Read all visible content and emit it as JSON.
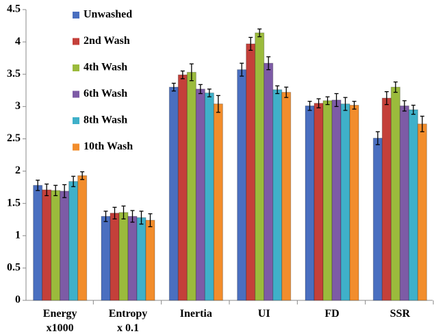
{
  "chart_data": {
    "type": "bar",
    "categories": [
      "Energy\nx1000",
      "Entropy\nx 0.1",
      "Inertia",
      "UI",
      "FD",
      "SSR"
    ],
    "series": [
      {
        "name": "Unwashed",
        "color": "#4a6fc0",
        "values": [
          1.78,
          1.3,
          3.3,
          3.57,
          3.01,
          2.51
        ],
        "errors": [
          0.08,
          0.08,
          0.06,
          0.1,
          0.07,
          0.1
        ]
      },
      {
        "name": "2nd Wash",
        "color": "#c4403a",
        "values": [
          1.71,
          1.35,
          3.49,
          3.97,
          3.05,
          3.13
        ],
        "errors": [
          0.09,
          0.09,
          0.06,
          0.1,
          0.07,
          0.1
        ]
      },
      {
        "name": "4th Wash",
        "color": "#9bbb3c",
        "values": [
          1.7,
          1.36,
          3.53,
          4.14,
          3.09,
          3.3
        ],
        "errors": [
          0.08,
          0.1,
          0.13,
          0.06,
          0.06,
          0.08
        ]
      },
      {
        "name": "6th Wash",
        "color": "#7d5ba6",
        "values": [
          1.69,
          1.3,
          3.27,
          3.67,
          3.1,
          3.01
        ],
        "errors": [
          0.1,
          0.09,
          0.07,
          0.1,
          0.1,
          0.08
        ]
      },
      {
        "name": "8th Wash",
        "color": "#3fb0c9",
        "values": [
          1.84,
          1.28,
          3.21,
          3.26,
          3.04,
          2.95
        ],
        "errors": [
          0.08,
          0.1,
          0.06,
          0.06,
          0.1,
          0.07
        ]
      },
      {
        "name": "10th Wash",
        "color": "#f28d2c",
        "values": [
          1.93,
          1.24,
          3.04,
          3.22,
          3.02,
          2.73
        ],
        "errors": [
          0.06,
          0.1,
          0.13,
          0.08,
          0.06,
          0.12
        ]
      }
    ],
    "ylim": [
      0,
      4.5
    ],
    "yticks": [
      0,
      0.5,
      1,
      1.5,
      2,
      2.5,
      3,
      3.5,
      4,
      4.5
    ],
    "grid": false,
    "legend": "upper left"
  }
}
